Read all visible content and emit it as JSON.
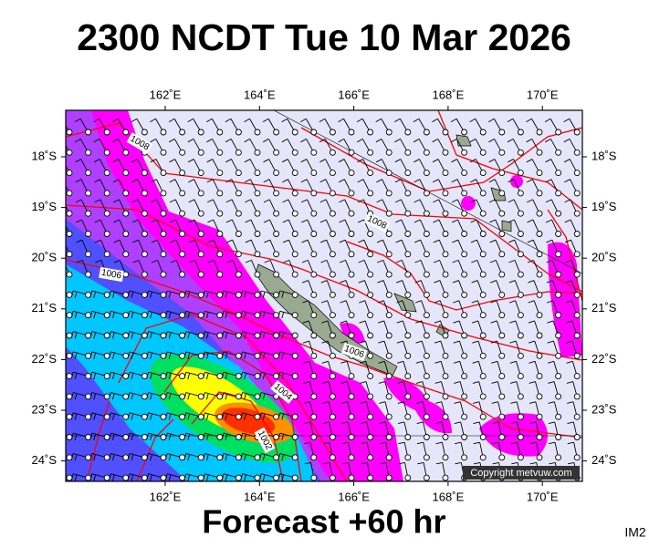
{
  "title": "2300 NCDT Tue 10 Mar 2026",
  "map": {
    "lon_ticks": [
      "162˚E",
      "164˚E",
      "166˚E",
      "168˚E",
      "170˚E"
    ],
    "lat_ticks": [
      "18˚S",
      "19˚S",
      "20˚S",
      "21˚S",
      "22˚S",
      "23˚S",
      "24˚S"
    ],
    "isobar_labels": [
      "1008",
      "1008",
      "1006",
      "1006",
      "1004",
      "1002"
    ],
    "copyright": "Copyright metvuw.com"
  },
  "footer": "Forecast +60 hr",
  "corner_label": "IM2"
}
